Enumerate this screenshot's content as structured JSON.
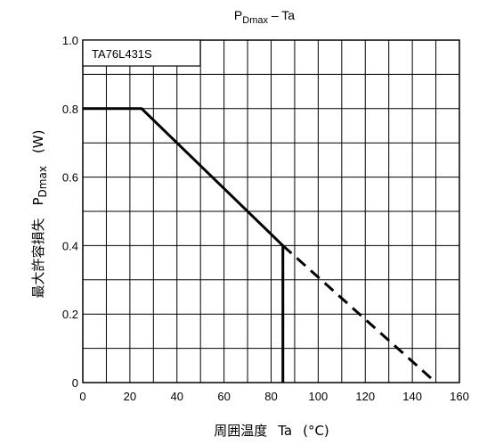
{
  "chart_data": {
    "type": "line",
    "title": {
      "main": "P",
      "sub": "Dmax",
      "rest": " – Ta"
    },
    "device_label": "TA76L431S",
    "xlabel": {
      "japanese": "周囲温度",
      "symbol": "Ta",
      "unit": "(°C)"
    },
    "ylabel": {
      "japanese": "最大許容損失",
      "symbol": "P",
      "sub": "Dmax",
      "unit": "(W)"
    },
    "xlim": [
      0,
      160
    ],
    "ylim": [
      0,
      1.0
    ],
    "xticks": [
      "0",
      "20",
      "40",
      "60",
      "80",
      "100",
      "120",
      "140",
      "160"
    ],
    "yticks": [
      "0",
      "0.2",
      "0.4",
      "0.6",
      "0.8",
      "1.0"
    ],
    "grid": true,
    "series": [
      {
        "style": "solid",
        "x": [
          0,
          25,
          85
        ],
        "y": [
          0.8,
          0.8,
          0.4
        ]
      },
      {
        "style": "dashed",
        "x": [
          85,
          150
        ],
        "y": [
          0.4,
          0.0
        ]
      },
      {
        "style": "solid",
        "x": [
          85,
          85
        ],
        "y": [
          0.4,
          0.0
        ]
      }
    ]
  }
}
